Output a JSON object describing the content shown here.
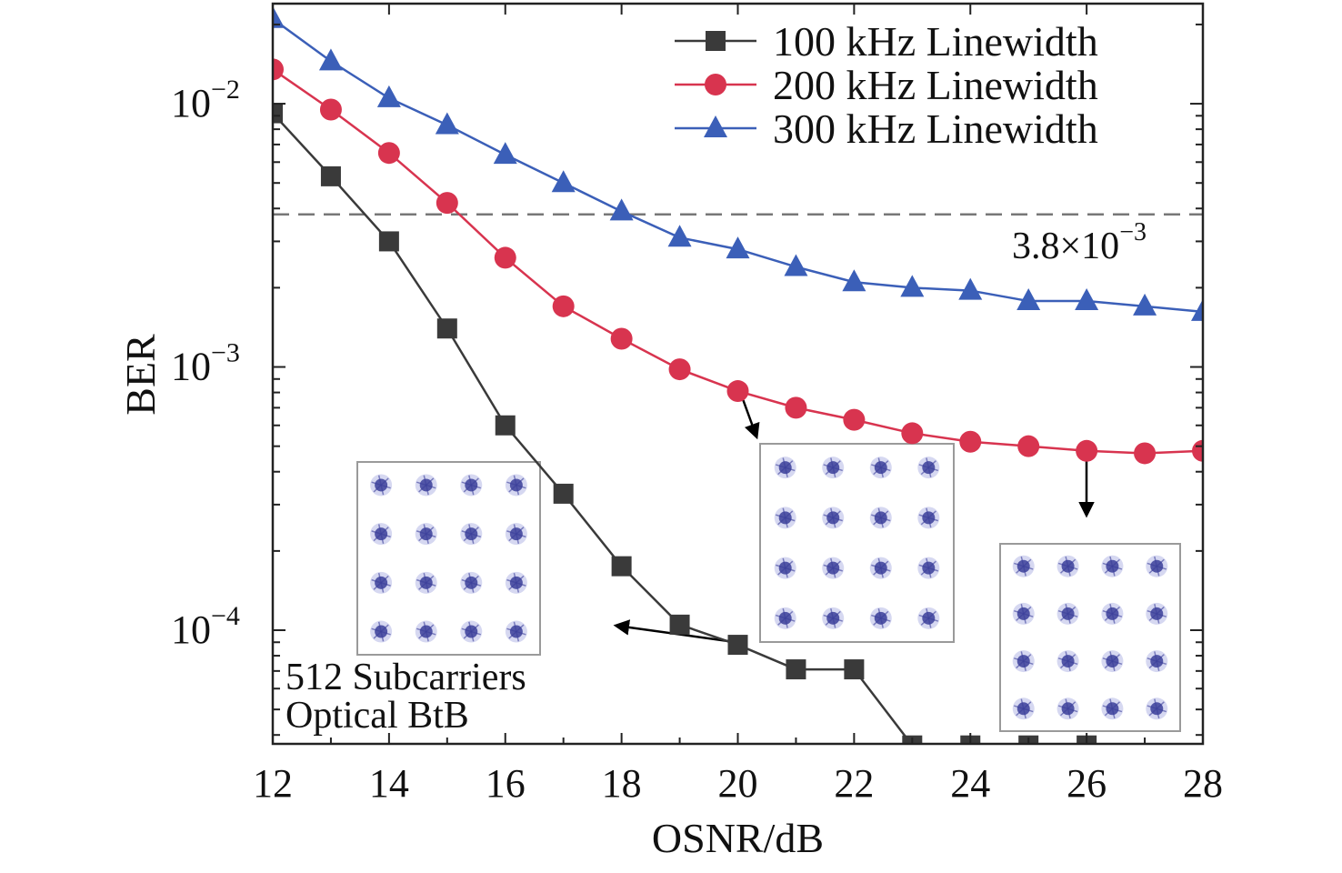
{
  "chart_data": {
    "type": "line",
    "title": "",
    "xlabel": "OSNR/dB",
    "ylabel": "BER",
    "xlim": [
      12,
      28
    ],
    "ylim": [
      3.7e-05,
      0.024
    ],
    "yscale": "log",
    "grid": false,
    "legend_position": "top-right",
    "x_ticks": [
      12,
      14,
      16,
      18,
      20,
      22,
      24,
      26,
      28
    ],
    "x_tick_labels": [
      "12",
      "14",
      "16",
      "18",
      "20",
      "22",
      "24",
      "26",
      "28"
    ],
    "y_ticks": [
      {
        "base": "10",
        "exp": "−2",
        "value": 0.01
      },
      {
        "base": "10",
        "exp": "−3",
        "value": 0.001
      },
      {
        "base": "10",
        "exp": "−4",
        "value": 0.0001
      }
    ],
    "series": [
      {
        "name": "100 kHz Linewidth",
        "marker": "square",
        "color": "#3a3a3a",
        "x": [
          12,
          13,
          14,
          15,
          16,
          17,
          18,
          19,
          20,
          21,
          22,
          23,
          24,
          25,
          26
        ],
        "values": [
          0.0092,
          0.0053,
          0.003,
          0.0014,
          0.0006,
          0.00033,
          0.000175,
          0.000105,
          8.8e-05,
          7.1e-05,
          7.1e-05,
          3.65e-05,
          3.65e-05,
          3.65e-05,
          3.65e-05
        ]
      },
      {
        "name": "200 kHz Linewidth",
        "marker": "circle",
        "color": "#d8344f",
        "x": [
          12,
          13,
          14,
          15,
          16,
          17,
          18,
          19,
          20,
          21,
          22,
          23,
          24,
          25,
          26,
          27,
          28
        ],
        "values": [
          0.0135,
          0.0095,
          0.0065,
          0.0042,
          0.0026,
          0.0017,
          0.00128,
          0.00098,
          0.00081,
          0.0007,
          0.00063,
          0.00056,
          0.00052,
          0.0005,
          0.00048,
          0.00047,
          0.00048
        ]
      },
      {
        "name": "300 kHz Linewidth",
        "marker": "triangle",
        "color": "#3b5fb8",
        "x": [
          12,
          13,
          14,
          15,
          16,
          17,
          18,
          19,
          20,
          21,
          22,
          23,
          24,
          25,
          26,
          27,
          28
        ],
        "values": [
          0.021,
          0.0145,
          0.0105,
          0.0083,
          0.0064,
          0.005,
          0.0039,
          0.0031,
          0.0028,
          0.0024,
          0.0021,
          0.002,
          0.00195,
          0.00178,
          0.00178,
          0.0017,
          0.00162
        ]
      }
    ],
    "reference_line": {
      "value": 0.0038,
      "style": "dashed",
      "color": "#777777",
      "label_base": "3.8×10",
      "label_exp": "−3"
    },
    "annotations": [
      {
        "line1": "512 Subcarriers",
        "line2": "Optical BtB"
      }
    ],
    "insets": [
      {
        "name": "constellation-100khz",
        "type": "16QAM constellation"
      },
      {
        "name": "constellation-200khz",
        "type": "16QAM constellation"
      },
      {
        "name": "constellation-300khz",
        "type": "16QAM constellation"
      }
    ],
    "colors": {
      "axis": "#222222",
      "constellation": "#3b3f9a",
      "constellation_halo": "#8a8fd8",
      "inset_border": "#9a9a9a"
    }
  }
}
